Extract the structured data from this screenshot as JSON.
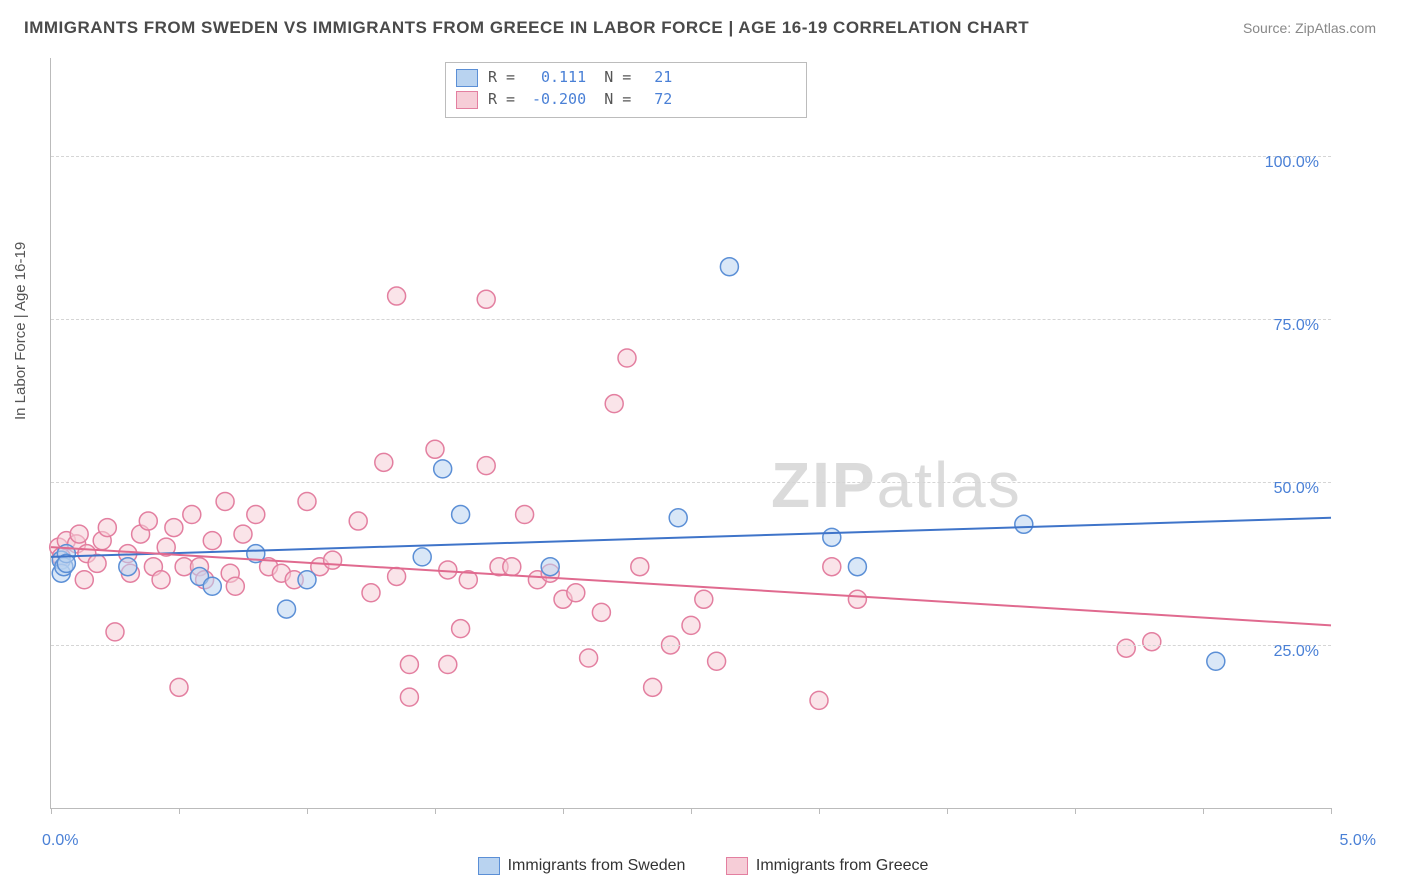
{
  "title": "IMMIGRANTS FROM SWEDEN VS IMMIGRANTS FROM GREECE IN LABOR FORCE | AGE 16-19 CORRELATION CHART",
  "source": "Source: ZipAtlas.com",
  "watermark_a": "ZIP",
  "watermark_b": "atlas",
  "y_axis_title": "In Labor Force | Age 16-19",
  "chart": {
    "type": "scatter",
    "background_color": "#ffffff",
    "grid_color": "#d5d5d5",
    "axis_color": "#bbbbbb",
    "xlim": [
      0.0,
      5.0
    ],
    "ylim": [
      0.0,
      115.0
    ],
    "y_ticks": [
      25.0,
      50.0,
      75.0,
      100.0
    ],
    "y_tick_labels": [
      "25.0%",
      "50.0%",
      "75.0%",
      "100.0%"
    ],
    "x_ticks": [
      0.0,
      0.5,
      1.0,
      1.5,
      2.0,
      2.5,
      3.0,
      3.5,
      4.0,
      4.5,
      5.0
    ],
    "x_tick_labels_left": "0.0%",
    "x_tick_labels_right": "5.0%",
    "y_label_color": "#4a80d6",
    "x_label_color": "#4a80d6",
    "label_fontsize": 16,
    "title_fontsize": 17,
    "title_color": "#4a4a4a",
    "marker_radius": 9,
    "marker_stroke_width": 1.5,
    "marker_opacity": 0.55,
    "line_width": 2
  },
  "series": [
    {
      "name": "Immigrants from Sweden",
      "fill": "#b9d3f0",
      "stroke": "#5b8fd6",
      "trend_color": "#3f74c9",
      "R_label": "R =",
      "R": "0.111",
      "N_label": "N =",
      "N": "21",
      "trend": {
        "y_at_xmin": 38.5,
        "y_at_xmax": 44.5
      },
      "points": [
        [
          0.04,
          38.0
        ],
        [
          0.04,
          36.0
        ],
        [
          0.05,
          37.0
        ],
        [
          0.06,
          39.0
        ],
        [
          0.06,
          37.5
        ],
        [
          0.3,
          37.0
        ],
        [
          0.58,
          35.5
        ],
        [
          0.63,
          34.0
        ],
        [
          0.8,
          39.0
        ],
        [
          0.92,
          30.5
        ],
        [
          1.0,
          35.0
        ],
        [
          1.45,
          38.5
        ],
        [
          1.53,
          52.0
        ],
        [
          1.6,
          45.0
        ],
        [
          1.95,
          37.0
        ],
        [
          2.45,
          44.5
        ],
        [
          2.65,
          83.0
        ],
        [
          3.05,
          41.5
        ],
        [
          3.15,
          37.0
        ],
        [
          3.8,
          43.5
        ],
        [
          4.55,
          22.5
        ]
      ]
    },
    {
      "name": "Immigrants from Greece",
      "fill": "#f6cdd7",
      "stroke": "#e37fa0",
      "trend_color": "#e06a8f",
      "R_label": "R =",
      "R": "-0.200",
      "N_label": "N =",
      "N": "72",
      "trend": {
        "y_at_xmin": 40.0,
        "y_at_xmax": 28.0
      },
      "points": [
        [
          0.03,
          40.0
        ],
        [
          0.04,
          38.5
        ],
        [
          0.06,
          41.0
        ],
        [
          0.1,
          40.5
        ],
        [
          0.11,
          42.0
        ],
        [
          0.13,
          35.0
        ],
        [
          0.14,
          39.0
        ],
        [
          0.18,
          37.5
        ],
        [
          0.2,
          41.0
        ],
        [
          0.22,
          43.0
        ],
        [
          0.25,
          27.0
        ],
        [
          0.3,
          39.0
        ],
        [
          0.31,
          36.0
        ],
        [
          0.35,
          42.0
        ],
        [
          0.38,
          44.0
        ],
        [
          0.4,
          37.0
        ],
        [
          0.43,
          35.0
        ],
        [
          0.45,
          40.0
        ],
        [
          0.48,
          43.0
        ],
        [
          0.5,
          18.5
        ],
        [
          0.52,
          37.0
        ],
        [
          0.55,
          45.0
        ],
        [
          0.58,
          37.0
        ],
        [
          0.6,
          35.0
        ],
        [
          0.63,
          41.0
        ],
        [
          0.68,
          47.0
        ],
        [
          0.7,
          36.0
        ],
        [
          0.72,
          34.0
        ],
        [
          0.75,
          42.0
        ],
        [
          0.8,
          45.0
        ],
        [
          0.85,
          37.0
        ],
        [
          0.9,
          36.0
        ],
        [
          0.95,
          35.0
        ],
        [
          1.0,
          47.0
        ],
        [
          1.05,
          37.0
        ],
        [
          1.1,
          38.0
        ],
        [
          1.2,
          44.0
        ],
        [
          1.25,
          33.0
        ],
        [
          1.3,
          53.0
        ],
        [
          1.35,
          78.5
        ],
        [
          1.35,
          35.5
        ],
        [
          1.4,
          17.0
        ],
        [
          1.4,
          22.0
        ],
        [
          1.5,
          55.0
        ],
        [
          1.55,
          36.5
        ],
        [
          1.55,
          22.0
        ],
        [
          1.6,
          27.5
        ],
        [
          1.63,
          35.0
        ],
        [
          1.7,
          78.0
        ],
        [
          1.7,
          52.5
        ],
        [
          1.75,
          37.0
        ],
        [
          1.8,
          37.0
        ],
        [
          1.85,
          45.0
        ],
        [
          1.9,
          35.0
        ],
        [
          1.95,
          36.0
        ],
        [
          2.0,
          32.0
        ],
        [
          2.05,
          33.0
        ],
        [
          2.1,
          23.0
        ],
        [
          2.15,
          30.0
        ],
        [
          2.2,
          62.0
        ],
        [
          2.25,
          69.0
        ],
        [
          2.3,
          37.0
        ],
        [
          2.35,
          18.5
        ],
        [
          2.42,
          25.0
        ],
        [
          2.5,
          28.0
        ],
        [
          2.55,
          32.0
        ],
        [
          2.6,
          22.5
        ],
        [
          3.0,
          16.5
        ],
        [
          3.05,
          37.0
        ],
        [
          3.15,
          32.0
        ],
        [
          4.2,
          24.5
        ],
        [
          4.3,
          25.5
        ]
      ]
    }
  ],
  "legend_bottom": [
    {
      "swatch_fill": "#b9d3f0",
      "swatch_stroke": "#5b8fd6",
      "label": "Immigrants from Sweden"
    },
    {
      "swatch_fill": "#f6cdd7",
      "swatch_stroke": "#e37fa0",
      "label": "Immigrants from Greece"
    }
  ]
}
